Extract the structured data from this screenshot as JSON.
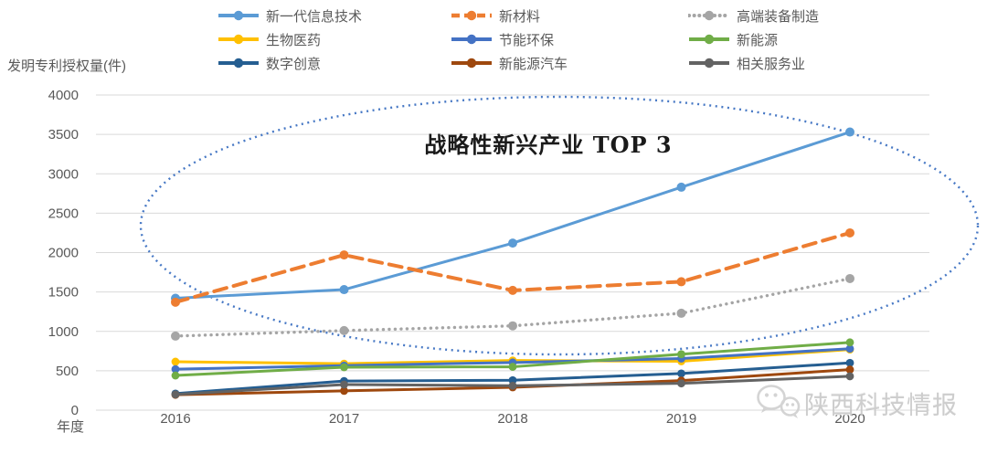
{
  "axes": {
    "y_title": "发明专利授权量(件)",
    "x_title": "年度"
  },
  "annotation": {
    "text": "战略性新兴产业 TOP 3"
  },
  "watermark": {
    "text": "陕西科技情报",
    "icon": "wechat-logo"
  },
  "chart_data": {
    "type": "line",
    "title": "",
    "categories": [
      "2016",
      "2017",
      "2018",
      "2019",
      "2020"
    ],
    "series": [
      {
        "name": "新一代信息技术",
        "color": "#5B9BD5",
        "line_style": "solid",
        "values": [
          1420,
          1530,
          2120,
          2830,
          3530
        ]
      },
      {
        "name": "新材料",
        "color": "#ED7D31",
        "line_style": "dashed",
        "values": [
          1370,
          1970,
          1520,
          1630,
          2250
        ]
      },
      {
        "name": "高端装备制造",
        "color": "#A5A5A5",
        "line_style": "dotted",
        "values": [
          940,
          1010,
          1070,
          1230,
          1670
        ]
      },
      {
        "name": "生物医药",
        "color": "#FFC000",
        "line_style": "solid",
        "values": [
          615,
          590,
          630,
          620,
          770
        ]
      },
      {
        "name": "节能环保",
        "color": "#4472C4",
        "line_style": "solid",
        "values": [
          520,
          565,
          605,
          655,
          780
        ]
      },
      {
        "name": "新能源",
        "color": "#70AD47",
        "line_style": "solid",
        "values": [
          440,
          545,
          550,
          710,
          860
        ]
      },
      {
        "name": "数字创意",
        "color": "#255E91",
        "line_style": "solid",
        "values": [
          210,
          370,
          380,
          465,
          600
        ]
      },
      {
        "name": "新能源汽车",
        "color": "#9E480E",
        "line_style": "solid",
        "values": [
          195,
          245,
          290,
          375,
          515
        ]
      },
      {
        "name": "相关服务业",
        "color": "#636363",
        "line_style": "solid",
        "values": [
          200,
          325,
          310,
          340,
          430
        ]
      }
    ],
    "xlabel": "年度",
    "ylabel": "发明专利授权量(件)",
    "ylim": [
      0,
      4000
    ],
    "y_ticks": [
      0,
      500,
      1000,
      1500,
      2000,
      2500,
      3000,
      3500,
      4000
    ],
    "grid": true,
    "legend_position": "top",
    "annotation": "战略性新兴产业 TOP 3",
    "annotation_shape": "dotted-ellipse"
  },
  "colors": {
    "grid": "#D9D9D9",
    "tick_label": "#595959",
    "legend_text": "#595959",
    "annotation_text": "#1a1a1a",
    "ellipse": "#4879C5",
    "watermark": "#c7c7c7"
  }
}
